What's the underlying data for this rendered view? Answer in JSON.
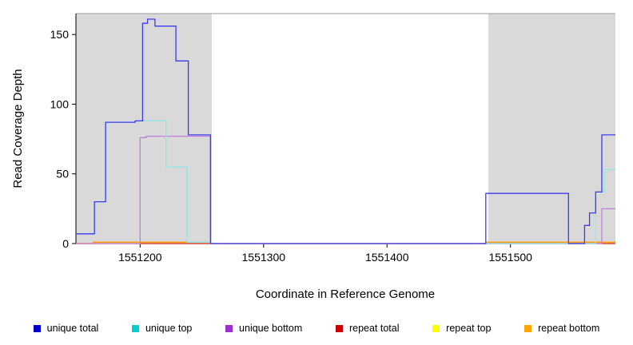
{
  "chart_data": {
    "type": "line",
    "title": "",
    "xlabel": "Coordinate in Reference Genome",
    "ylabel": "Read Coverage Depth",
    "xlim": [
      1551148,
      1551585
    ],
    "ylim": [
      0,
      165
    ],
    "x_ticks": [
      1551200,
      1551300,
      1551400,
      1551500
    ],
    "y_ticks": [
      0,
      50,
      100,
      150
    ],
    "grid": false,
    "legend_position": "bottom",
    "shade_color": "#d9d9d9",
    "shaded_regions": [
      [
        1551148,
        1551258
      ],
      [
        1551482,
        1551585
      ]
    ],
    "series": [
      {
        "name": "repeat top",
        "line_color": "#ffff33",
        "step_points": [
          [
            1551148,
            0
          ]
        ]
      },
      {
        "name": "repeat total",
        "line_color": "#dd2222",
        "step_points": [
          [
            1551148,
            0
          ]
        ]
      },
      {
        "name": "repeat bottom",
        "line_color": "#ff9d00",
        "step_points": [
          [
            1551148,
            0
          ],
          [
            1551162,
            1
          ],
          [
            1551257,
            0
          ],
          [
            1551480,
            1
          ]
        ]
      },
      {
        "name": "unique bottom",
        "line_color": "#bf7fdf",
        "step_points": [
          [
            1551148,
            0
          ],
          [
            1551200,
            76
          ],
          [
            1551205,
            77
          ],
          [
            1551257,
            0
          ],
          [
            1551574,
            25
          ]
        ]
      },
      {
        "name": "unique top",
        "line_color": "#8fe8e8",
        "step_points": [
          [
            1551148,
            7
          ],
          [
            1551163,
            30
          ],
          [
            1551172,
            87
          ],
          [
            1551196,
            88
          ],
          [
            1551221,
            55
          ],
          [
            1551238,
            1
          ],
          [
            1551257,
            0
          ],
          [
            1551569,
            37
          ],
          [
            1551576,
            53
          ]
        ]
      },
      {
        "name": "unique total",
        "line_color": "#3b3bf0",
        "step_points": [
          [
            1551148,
            7
          ],
          [
            1551163,
            30
          ],
          [
            1551172,
            87
          ],
          [
            1551196,
            88
          ],
          [
            1551202,
            158
          ],
          [
            1551206,
            161
          ],
          [
            1551212,
            156
          ],
          [
            1551229,
            131
          ],
          [
            1551239,
            78
          ],
          [
            1551257,
            0
          ],
          [
            1551480,
            36
          ],
          [
            1551547,
            0
          ],
          [
            1551560,
            13
          ],
          [
            1551564,
            22
          ],
          [
            1551569,
            37
          ],
          [
            1551574,
            78
          ]
        ]
      }
    ],
    "legend": [
      {
        "label": "unique total",
        "color": "#0000cc"
      },
      {
        "label": "unique top",
        "color": "#00ced1"
      },
      {
        "label": "unique bottom",
        "color": "#9932cc"
      },
      {
        "label": "repeat total",
        "color": "#cc0000"
      },
      {
        "label": "repeat top",
        "color": "#ffff00"
      },
      {
        "label": "repeat bottom",
        "color": "#ffa500"
      }
    ]
  }
}
